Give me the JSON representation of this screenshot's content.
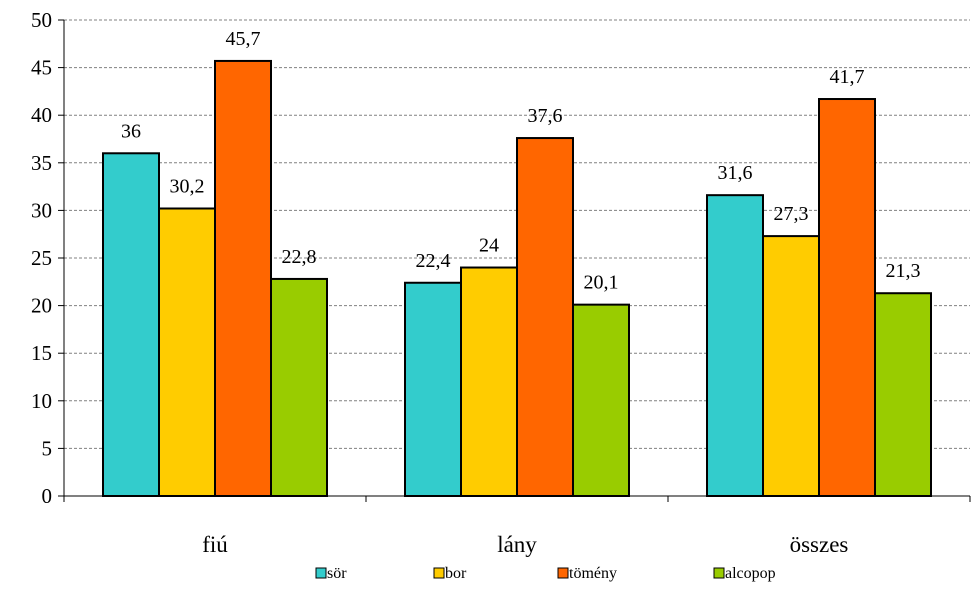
{
  "chart_data": {
    "type": "bar",
    "categories": [
      "fiú",
      "lány",
      "összes"
    ],
    "series": [
      {
        "name": "sör",
        "color": "#33CCCC",
        "values": [
          36,
          22.4,
          31.6
        ]
      },
      {
        "name": "bor",
        "color": "#FFCC00",
        "values": [
          30.2,
          24,
          27.3
        ]
      },
      {
        "name": "tömény",
        "color": "#FF6600",
        "values": [
          45.7,
          37.6,
          41.7
        ]
      },
      {
        "name": "alcopop",
        "color": "#99CC00",
        "values": [
          22.8,
          20.1,
          21.3
        ]
      }
    ],
    "data_labels": [
      [
        "36",
        "22,4",
        "31,6"
      ],
      [
        "30,2",
        "24",
        "27,3"
      ],
      [
        "45,7",
        "37,6",
        "41,7"
      ],
      [
        "22,8",
        "20,1",
        "21,3"
      ]
    ],
    "y_ticks": [
      "0",
      "5",
      "10",
      "15",
      "20",
      "25",
      "30",
      "35",
      "40",
      "45",
      "50"
    ],
    "ylim": [
      0,
      50
    ],
    "y_step": 5,
    "grid": true,
    "legend_position": "bottom"
  }
}
